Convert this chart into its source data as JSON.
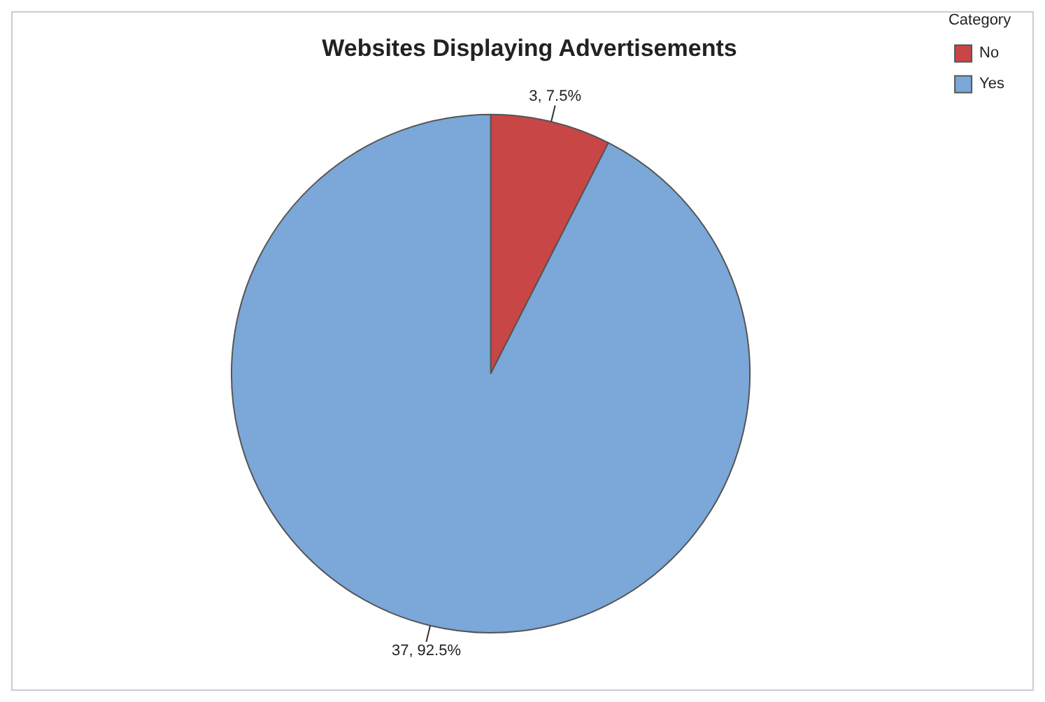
{
  "chart_data": {
    "type": "pie",
    "title": "Websites Displaying Advertisements",
    "legend_title": "Category",
    "legend": "top right",
    "categories": [
      "No",
      "Yes"
    ],
    "values": [
      3,
      37
    ],
    "colors": [
      "#c84646",
      "#7ba7d9"
    ],
    "value_labels": [
      "3, 7.5%",
      "37, 92.5%"
    ]
  }
}
